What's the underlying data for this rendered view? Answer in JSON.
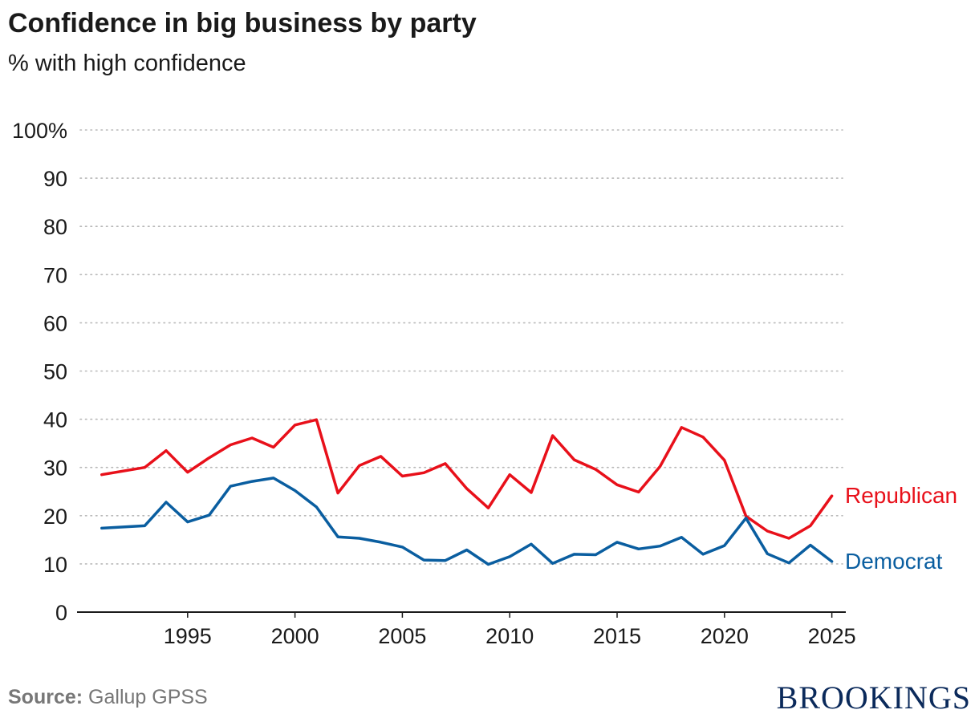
{
  "chart_data": {
    "type": "line",
    "title": "Confidence in big business by party",
    "subtitle": "% with high confidence",
    "xlabel": "",
    "ylabel": "",
    "xlim": [
      1990,
      2025.5
    ],
    "ylim": [
      0,
      100
    ],
    "x_ticks": [
      1995,
      2000,
      2005,
      2010,
      2015,
      2020,
      2025
    ],
    "x_tick_labels": [
      "1995",
      "2000",
      "2005",
      "2010",
      "2015",
      "2020",
      "2025"
    ],
    "y_ticks": [
      0,
      10,
      20,
      30,
      40,
      50,
      60,
      70,
      80,
      90,
      100
    ],
    "y_tick_labels": [
      "0",
      "10",
      "20",
      "30",
      "40",
      "50",
      "60",
      "70",
      "80",
      "90",
      "100%"
    ],
    "grid": true,
    "x": [
      1991,
      1993,
      1994,
      1995,
      1996,
      1997,
      1998,
      1999,
      2000,
      2001,
      2002,
      2003,
      2004,
      2005,
      2006,
      2007,
      2008,
      2009,
      2010,
      2011,
      2012,
      2013,
      2014,
      2015,
      2016,
      2017,
      2018,
      2019,
      2020,
      2021,
      2022,
      2023,
      2024,
      2025
    ],
    "series": [
      {
        "name": "Republican",
        "color": "#e8101a",
        "values": [
          28.5,
          30,
          33.5,
          29,
          32,
          34.7,
          36.1,
          34.2,
          38.8,
          39.9,
          24.7,
          30.4,
          32.3,
          28.2,
          28.9,
          30.8,
          25.6,
          21.6,
          28.5,
          24.8,
          36.6,
          31.6,
          29.6,
          26.4,
          24.9,
          30.2,
          38.3,
          36.3,
          31.5,
          19.9,
          16.8,
          15.3,
          17.9,
          24.1
        ]
      },
      {
        "name": "Democrat",
        "color": "#0a5ea0",
        "values": [
          17.4,
          17.9,
          22.8,
          18.7,
          20.1,
          26.1,
          27.1,
          27.8,
          25.2,
          21.8,
          15.6,
          15.3,
          14.5,
          13.5,
          10.8,
          10.7,
          12.9,
          9.9,
          11.5,
          14.1,
          10.1,
          12.0,
          11.9,
          14.5,
          13.1,
          13.7,
          15.5,
          12.0,
          13.8,
          19.5,
          12.1,
          10.2,
          13.9,
          10.5
        ]
      }
    ]
  },
  "footer": {
    "source_label": "Source:",
    "source_text": " Gallup GPSS",
    "brand": "BROOKINGS"
  }
}
